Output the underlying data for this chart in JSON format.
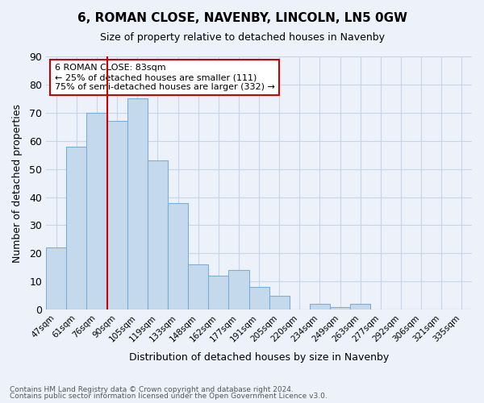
{
  "title": "6, ROMAN CLOSE, NAVENBY, LINCOLN, LN5 0GW",
  "subtitle": "Size of property relative to detached houses in Navenby",
  "xlabel": "Distribution of detached houses by size in Navenby",
  "ylabel": "Number of detached properties",
  "footnote1": "Contains HM Land Registry data © Crown copyright and database right 2024.",
  "footnote2": "Contains public sector information licensed under the Open Government Licence v3.0.",
  "bins": [
    "47sqm",
    "61sqm",
    "76sqm",
    "90sqm",
    "105sqm",
    "119sqm",
    "133sqm",
    "148sqm",
    "162sqm",
    "177sqm",
    "191sqm",
    "205sqm",
    "220sqm",
    "234sqm",
    "249sqm",
    "263sqm",
    "277sqm",
    "292sqm",
    "306sqm",
    "321sqm",
    "335sqm"
  ],
  "values": [
    22,
    58,
    70,
    67,
    75,
    53,
    38,
    16,
    12,
    14,
    8,
    5,
    0,
    2,
    1,
    2,
    0,
    0,
    0,
    0,
    0
  ],
  "bar_color": "#c5d9ed",
  "bar_edge_color": "#7aaed6",
  "vline_color": "#cc0000",
  "vline_pos": 2.5,
  "annotation_title": "6 ROMAN CLOSE: 83sqm",
  "annotation_line1": "← 25% of detached houses are smaller (111)",
  "annotation_line2": "75% of semi-detached houses are larger (332) →",
  "annotation_box_color": "#ffffff",
  "annotation_box_edge": "#cc0000",
  "ylim": [
    0,
    90
  ],
  "yticks": [
    0,
    10,
    20,
    30,
    40,
    50,
    60,
    70,
    80,
    90
  ],
  "background_color": "#edf2fa",
  "grid_color": "#c8d4e8"
}
